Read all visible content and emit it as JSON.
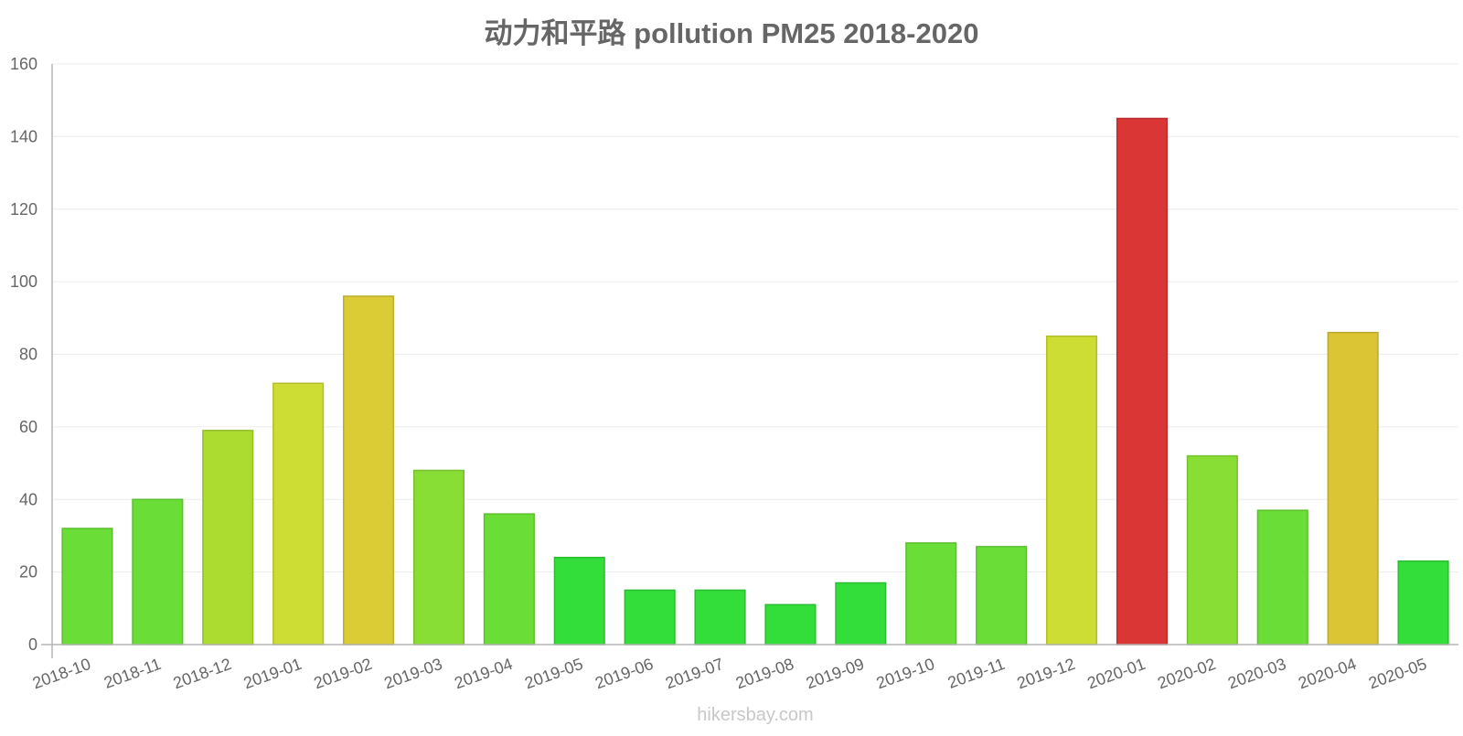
{
  "chart_data": {
    "type": "bar",
    "title": "动力和平路 pollution PM25 2018-2020",
    "xlabel": "",
    "ylabel": "",
    "ylim": [
      0,
      160
    ],
    "yticks": [
      0,
      20,
      40,
      60,
      80,
      100,
      120,
      140,
      160
    ],
    "grid": true,
    "legend": "none",
    "categories": [
      "2018-10",
      "2018-11",
      "2018-12",
      "2019-01",
      "2019-02",
      "2019-03",
      "2019-04",
      "2019-05",
      "2019-06",
      "2019-07",
      "2019-08",
      "2019-09",
      "2019-10",
      "2019-11",
      "2019-12",
      "2020-01",
      "2020-02",
      "2020-03",
      "2020-04",
      "2020-05"
    ],
    "values": [
      32,
      40,
      59,
      72,
      96,
      48,
      36,
      24,
      15,
      15,
      11,
      17,
      28,
      27,
      85,
      145,
      52,
      37,
      86,
      23
    ],
    "bar_colors": [
      "#6ade37",
      "#6ade37",
      "#acdc30",
      "#cddd33",
      "#dbcb35",
      "#89de35",
      "#6ade37",
      "#33dd3a",
      "#33dd3a",
      "#33dd3a",
      "#33dd3a",
      "#33dd3a",
      "#6ade37",
      "#6ade37",
      "#cddd33",
      "#db3636",
      "#89de35",
      "#6ade37",
      "#dbc535",
      "#33dd3a"
    ],
    "bar_stroke_colors": [
      "#5bbf30",
      "#5bbf30",
      "#93bd29",
      "#b0be2c",
      "#bcae2e",
      "#76bf2e",
      "#5bbf30",
      "#2cbe32",
      "#2cbe32",
      "#2cbe32",
      "#2cbe32",
      "#2cbe32",
      "#5bbf30",
      "#5bbf30",
      "#b0be2c",
      "#bc2e2e",
      "#76bf2e",
      "#5bbf30",
      "#bca92e",
      "#2cbe32"
    ]
  },
  "watermark": "hikersbay.com"
}
